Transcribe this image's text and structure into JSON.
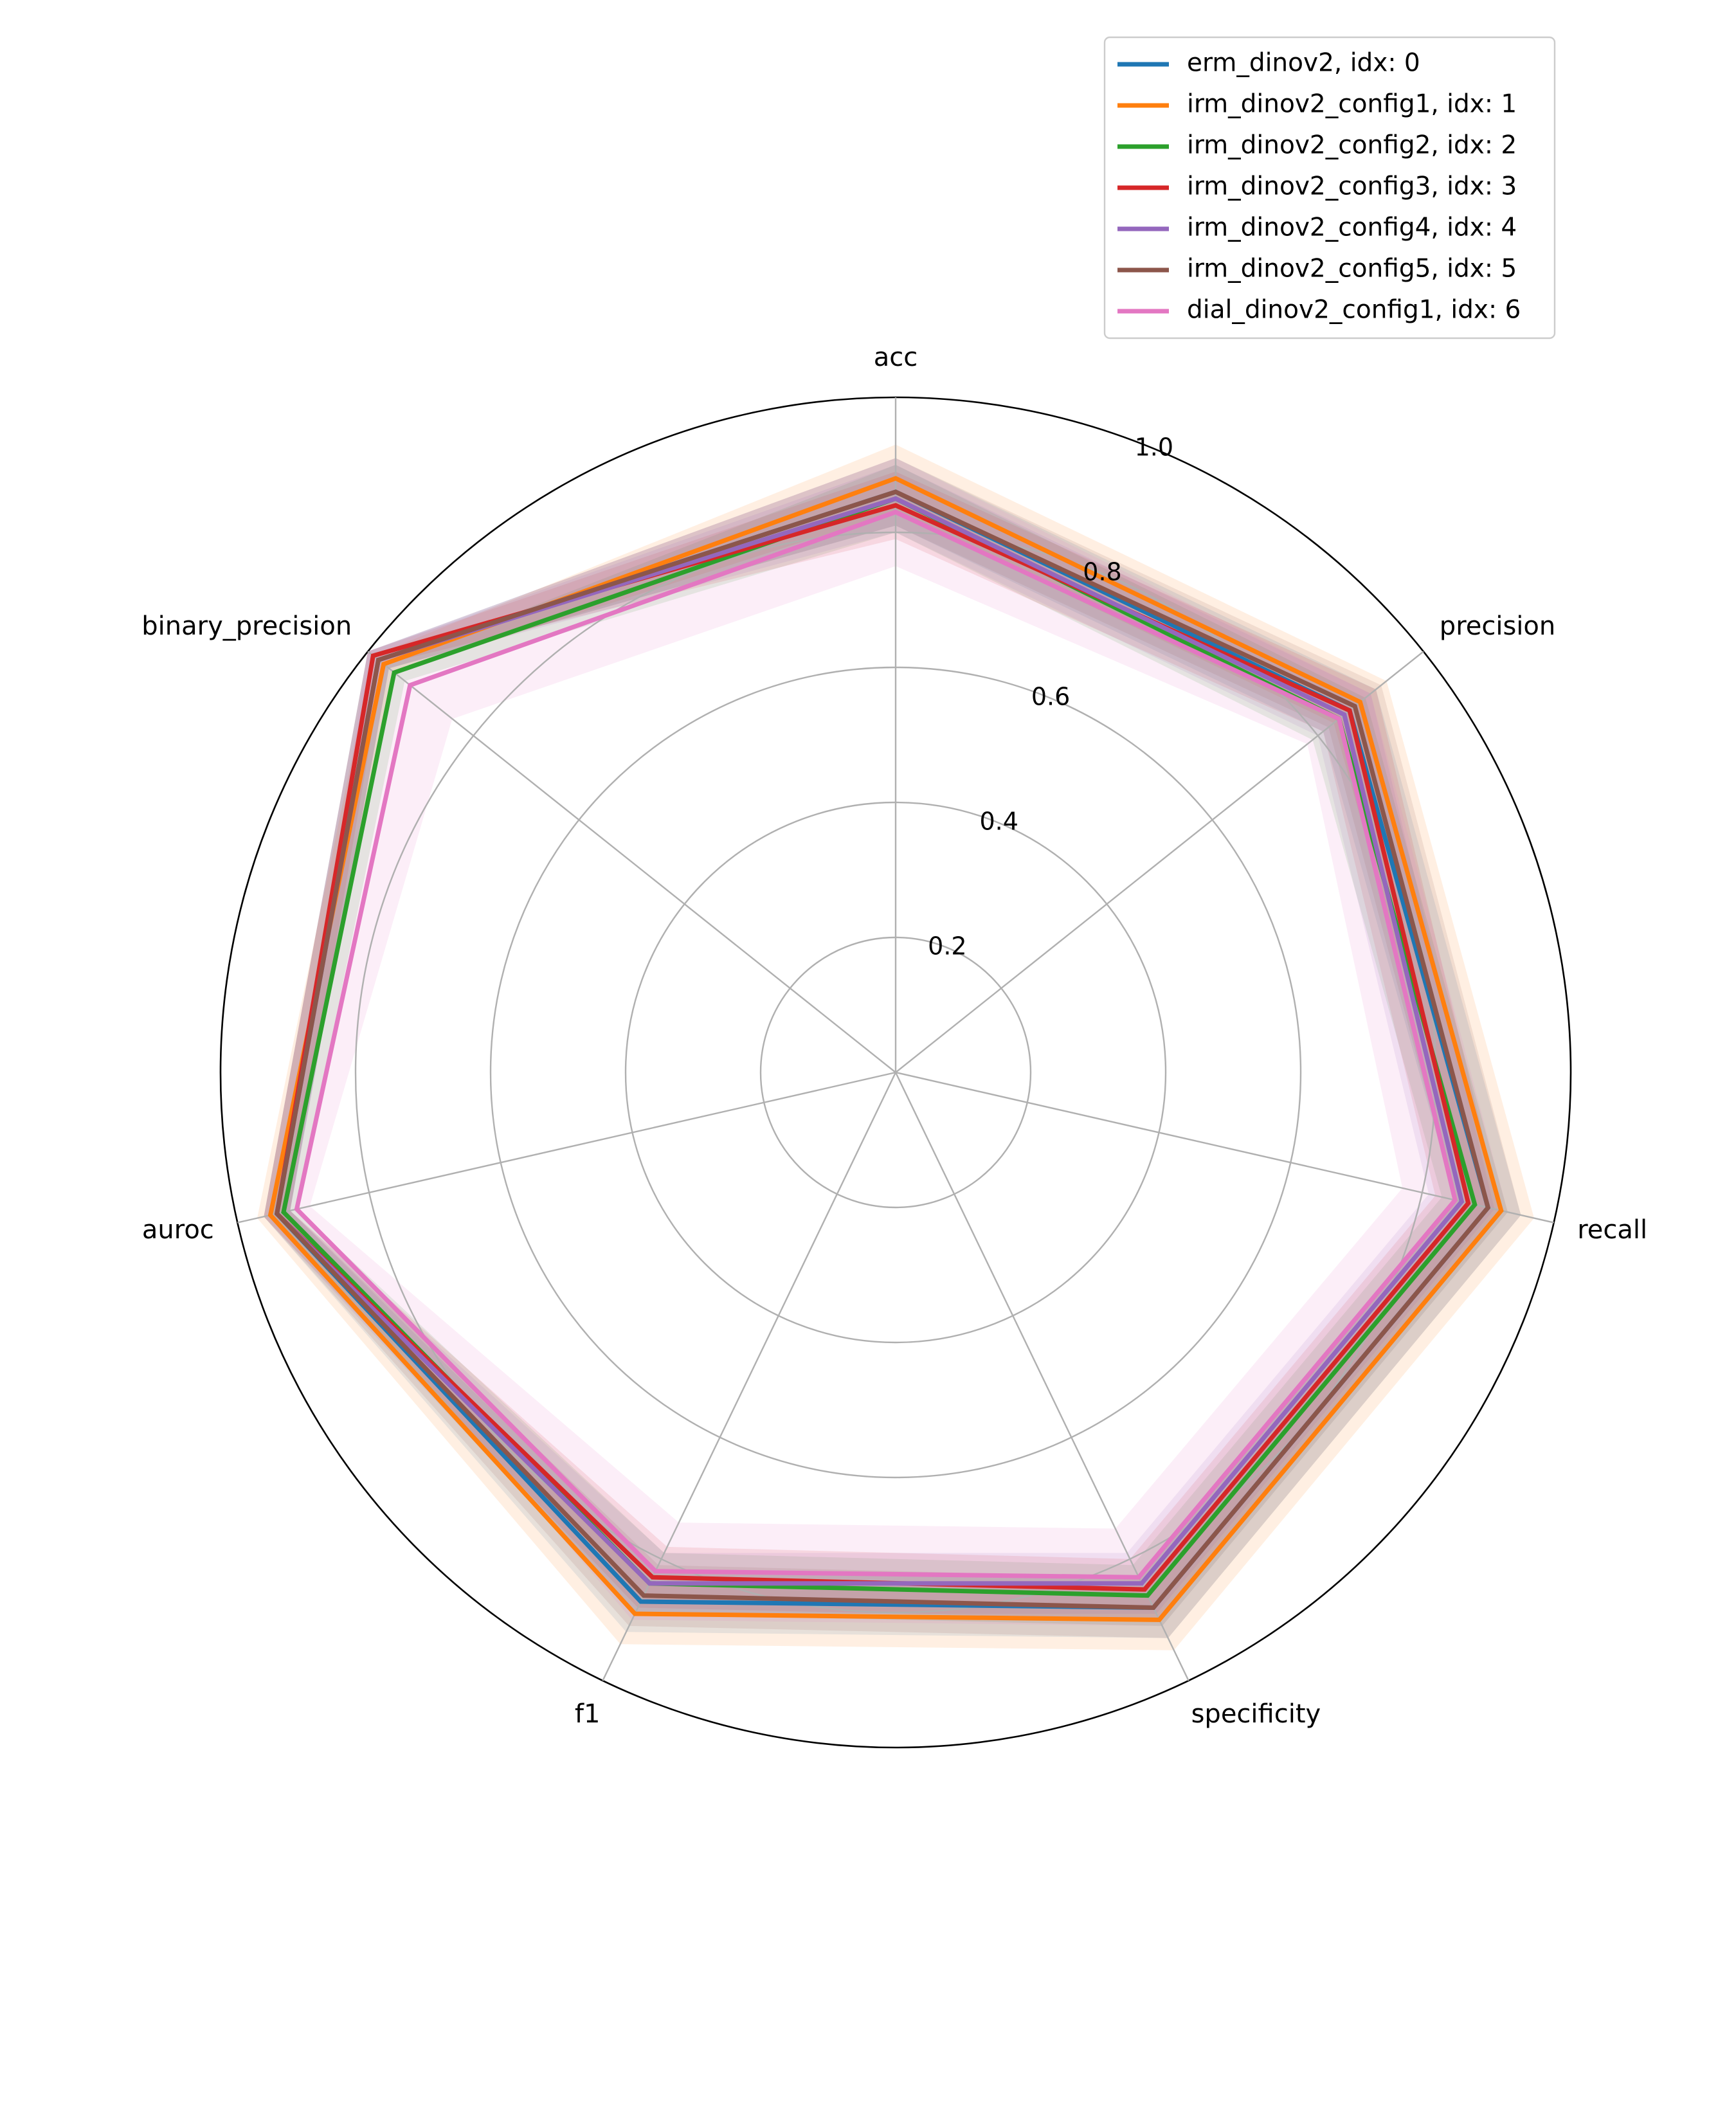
{
  "chart_data": {
    "type": "radar",
    "axes": [
      "acc",
      "precision",
      "recall",
      "specificity",
      "f1",
      "auroc",
      "binary_precision"
    ],
    "rlim": [
      0,
      1.0
    ],
    "rticks": [
      0.2,
      0.4,
      0.6,
      0.8,
      1.0
    ],
    "rtick_labels": [
      "0.2",
      "0.4",
      "0.6",
      "0.8",
      "1.0"
    ],
    "legend_position": "top-right",
    "series": [
      {
        "name": "erm_dinov2, idx: 0",
        "color": "#1f77b4",
        "values": [
          0.86,
          0.86,
          0.9,
          0.88,
          0.87,
          0.94,
          0.98
        ],
        "band_lower": [
          0.81,
          0.81,
          0.85,
          0.83,
          0.82,
          0.92,
          0.96
        ],
        "band_upper": [
          0.91,
          0.91,
          0.95,
          0.93,
          0.92,
          0.96,
          1.0
        ]
      },
      {
        "name": "irm_dinov2_config1, idx: 1",
        "color": "#ff7f0e",
        "values": [
          0.88,
          0.88,
          0.92,
          0.9,
          0.89,
          0.95,
          0.97
        ],
        "band_lower": [
          0.83,
          0.83,
          0.87,
          0.85,
          0.84,
          0.93,
          0.95
        ],
        "band_upper": [
          0.93,
          0.93,
          0.97,
          0.95,
          0.94,
          0.97,
          0.99
        ]
      },
      {
        "name": "irm_dinov2_config2, idx: 2",
        "color": "#2ca02c",
        "values": [
          0.85,
          0.84,
          0.88,
          0.86,
          0.84,
          0.93,
          0.95
        ],
        "band_lower": [
          0.8,
          0.79,
          0.83,
          0.81,
          0.79,
          0.91,
          0.93
        ],
        "band_upper": [
          0.9,
          0.89,
          0.93,
          0.91,
          0.89,
          0.95,
          0.97
        ]
      },
      {
        "name": "irm_dinov2_config3, idx: 3",
        "color": "#d62728",
        "values": [
          0.84,
          0.86,
          0.87,
          0.85,
          0.83,
          0.94,
          0.99
        ],
        "band_lower": [
          0.79,
          0.81,
          0.82,
          0.8,
          0.78,
          0.92,
          0.97
        ],
        "band_upper": [
          0.89,
          0.91,
          0.92,
          0.9,
          0.88,
          0.96,
          1.0
        ]
      },
      {
        "name": "irm_dinov2_config4, idx: 4",
        "color": "#9467bd",
        "values": [
          0.85,
          0.85,
          0.86,
          0.84,
          0.84,
          0.94,
          0.98
        ],
        "band_lower": [
          0.8,
          0.8,
          0.81,
          0.79,
          0.79,
          0.92,
          0.96
        ],
        "band_upper": [
          0.9,
          0.9,
          0.91,
          0.89,
          0.89,
          0.96,
          1.0
        ]
      },
      {
        "name": "irm_dinov2_config5, idx: 5",
        "color": "#8c564b",
        "values": [
          0.86,
          0.87,
          0.9,
          0.88,
          0.86,
          0.94,
          0.98
        ],
        "band_lower": [
          0.81,
          0.82,
          0.85,
          0.83,
          0.81,
          0.92,
          0.96
        ],
        "band_upper": [
          0.91,
          0.92,
          0.95,
          0.93,
          0.91,
          0.96,
          1.0
        ]
      },
      {
        "name": "dial_dinov2_config1, idx: 6",
        "color": "#e377c2",
        "values": [
          0.83,
          0.84,
          0.85,
          0.83,
          0.82,
          0.91,
          0.92
        ],
        "band_lower": [
          0.75,
          0.78,
          0.77,
          0.75,
          0.74,
          0.89,
          0.84
        ],
        "band_upper": [
          0.91,
          0.9,
          0.93,
          0.91,
          0.9,
          0.93,
          1.0
        ]
      }
    ]
  }
}
